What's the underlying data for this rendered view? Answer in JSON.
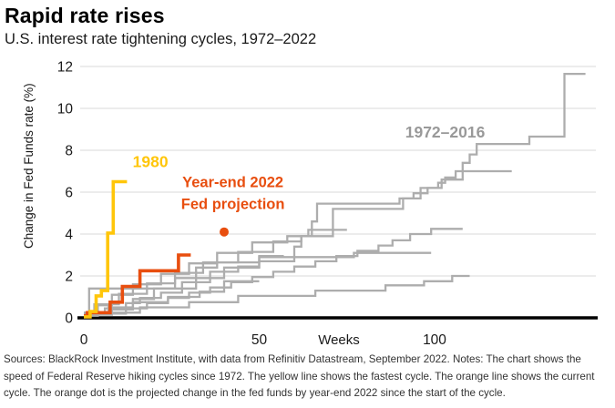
{
  "header": {
    "title": "Rapid rate rises",
    "subtitle": "U.S. interest rate tightening cycles, 1972–2022"
  },
  "footer": {
    "text": "Sources: BlackRock Investment Institute, with data from Refinitiv Datastream, September 2022. Notes: The chart shows the speed of Federal Reserve hiking cycles since 1972. The yellow line shows the fastest cycle. The orange line shows the current cycle. The orange dot is the projected change in the fed funds by year-end 2022 since the start of the cycle."
  },
  "chart_data": {
    "type": "line",
    "title": "Rapid rate rises",
    "subtitle": "U.S. interest rate tightening cycles, 1972-2022",
    "xlabel": "Weeks",
    "ylabel": "Change in Fed Funds rate (%)",
    "xlim": [
      0,
      145
    ],
    "ylim": [
      0,
      12
    ],
    "x_ticks": [
      0,
      50,
      100
    ],
    "y_ticks": [
      0,
      2,
      4,
      6,
      8,
      10,
      12
    ],
    "grid": "horizontal",
    "legend_position": "annotations-inline",
    "colors": {
      "yellow": "#FFC60A",
      "orange": "#E84E0F",
      "gray": "#ADADAD",
      "gray_label": "#999999",
      "grid": "#DADADA",
      "axis": "#000000",
      "tick_text": "#1a1a1a"
    },
    "series": [
      {
        "name": "cycle-1972-2016-a",
        "color": "gray",
        "width": 2.3,
        "points": [
          [
            0,
            0.1
          ],
          [
            4,
            0.1
          ],
          [
            4,
            0.6
          ],
          [
            8,
            0.6
          ],
          [
            8,
            1.1
          ],
          [
            14,
            1.1
          ],
          [
            14,
            1.6
          ],
          [
            22,
            1.6
          ],
          [
            22,
            2.1
          ],
          [
            30,
            2.1
          ],
          [
            30,
            2.6
          ],
          [
            38,
            2.6
          ],
          [
            38,
            3.1
          ],
          [
            48,
            3.1
          ],
          [
            48,
            3.6
          ],
          [
            58,
            3.6
          ],
          [
            58,
            3.9
          ],
          [
            65,
            3.9
          ],
          [
            65,
            4.6
          ],
          [
            66.5,
            4.6
          ],
          [
            66.5,
            5.45
          ],
          [
            90,
            5.45
          ],
          [
            90,
            5.7
          ],
          [
            94,
            5.7
          ],
          [
            94,
            5.95
          ],
          [
            98,
            5.95
          ],
          [
            98,
            6.2
          ],
          [
            101,
            6.2
          ],
          [
            101,
            6.45
          ],
          [
            103,
            6.45
          ],
          [
            103,
            6.7
          ],
          [
            106,
            6.7
          ],
          [
            106,
            7.0
          ],
          [
            108,
            7.0
          ],
          [
            108,
            7.4
          ],
          [
            110,
            7.4
          ],
          [
            110,
            7.8
          ],
          [
            112,
            7.8
          ],
          [
            112,
            8.3
          ],
          [
            127,
            8.3
          ],
          [
            127,
            8.65
          ],
          [
            137,
            8.65
          ],
          [
            137,
            11.65
          ],
          [
            143,
            11.65
          ]
        ]
      },
      {
        "name": "cycle-1972-2016-b",
        "color": "gray",
        "width": 2.3,
        "points": [
          [
            0,
            0.15
          ],
          [
            3,
            0.15
          ],
          [
            3,
            0.65
          ],
          [
            10,
            0.65
          ],
          [
            10,
            1.15
          ],
          [
            18,
            1.15
          ],
          [
            18,
            1.65
          ],
          [
            26,
            1.65
          ],
          [
            26,
            2.15
          ],
          [
            34,
            2.15
          ],
          [
            34,
            2.65
          ],
          [
            44,
            2.65
          ],
          [
            44,
            3.15
          ],
          [
            54,
            3.15
          ],
          [
            54,
            3.65
          ],
          [
            62,
            3.65
          ],
          [
            62,
            3.9
          ],
          [
            71,
            3.9
          ],
          [
            71,
            5.2
          ],
          [
            91,
            5.2
          ],
          [
            91,
            5.7
          ],
          [
            96,
            5.7
          ],
          [
            96,
            6.2
          ],
          [
            102,
            6.2
          ],
          [
            102,
            6.6
          ],
          [
            108,
            6.6
          ],
          [
            108,
            7.0
          ],
          [
            122,
            7.0
          ]
        ]
      },
      {
        "name": "cycle-1972-2016-c",
        "color": "gray",
        "width": 2.3,
        "points": [
          [
            0,
            0.2
          ],
          [
            12,
            0.2
          ],
          [
            12,
            0.45
          ],
          [
            18,
            0.45
          ],
          [
            18,
            0.7
          ],
          [
            24,
            0.7
          ],
          [
            24,
            0.95
          ],
          [
            30,
            0.95
          ],
          [
            30,
            1.2
          ],
          [
            36,
            1.2
          ],
          [
            36,
            1.45
          ],
          [
            42,
            1.45
          ],
          [
            42,
            1.7
          ],
          [
            48,
            1.7
          ],
          [
            48,
            1.95
          ],
          [
            54,
            1.95
          ],
          [
            54,
            2.2
          ],
          [
            60,
            2.2
          ],
          [
            60,
            2.45
          ],
          [
            66,
            2.45
          ],
          [
            66,
            2.7
          ],
          [
            72,
            2.7
          ],
          [
            72,
            2.95
          ],
          [
            78,
            2.95
          ],
          [
            78,
            3.2
          ],
          [
            84,
            3.2
          ],
          [
            84,
            3.45
          ],
          [
            88,
            3.45
          ],
          [
            88,
            3.7
          ],
          [
            93,
            3.7
          ],
          [
            93,
            4.0
          ],
          [
            99,
            4.0
          ],
          [
            99,
            4.25
          ],
          [
            108,
            4.25
          ]
        ]
      },
      {
        "name": "cycle-1972-2016-d",
        "color": "gray",
        "width": 2.3,
        "points": [
          [
            0,
            0.25
          ],
          [
            16,
            0.25
          ],
          [
            16,
            0.5
          ],
          [
            30,
            0.5
          ],
          [
            30,
            0.75
          ],
          [
            44,
            0.75
          ],
          [
            44,
            1.05
          ],
          [
            66,
            1.05
          ],
          [
            66,
            1.3
          ],
          [
            86,
            1.3
          ],
          [
            86,
            1.55
          ],
          [
            97,
            1.55
          ],
          [
            97,
            1.75
          ],
          [
            105,
            1.75
          ],
          [
            105,
            2.0
          ],
          [
            110,
            2.0
          ]
        ]
      },
      {
        "name": "cycle-1972-2016-e",
        "color": "gray",
        "width": 2.3,
        "points": [
          [
            0,
            0.1
          ],
          [
            1.5,
            0.1
          ],
          [
            1.5,
            1.4
          ],
          [
            32,
            1.4
          ],
          [
            32,
            1.9
          ],
          [
            40,
            1.9
          ],
          [
            40,
            2.4
          ],
          [
            50,
            2.4
          ],
          [
            50,
            2.7
          ],
          [
            60,
            2.7
          ],
          [
            60,
            3.4
          ],
          [
            62,
            3.4
          ],
          [
            62,
            3.9
          ],
          [
            64,
            3.9
          ],
          [
            64,
            4.2
          ],
          [
            75,
            4.2
          ]
        ]
      },
      {
        "name": "cycle-1972-2016-f",
        "color": "gray",
        "width": 2.3,
        "points": [
          [
            0,
            0.2
          ],
          [
            6,
            0.2
          ],
          [
            6,
            0.45
          ],
          [
            12,
            0.45
          ],
          [
            12,
            0.7
          ],
          [
            16,
            0.7
          ],
          [
            16,
            0.95
          ],
          [
            22,
            0.95
          ],
          [
            22,
            1.2
          ],
          [
            28,
            1.2
          ],
          [
            28,
            1.7
          ],
          [
            36,
            1.7
          ],
          [
            36,
            2.2
          ],
          [
            44,
            2.2
          ],
          [
            44,
            2.45
          ],
          [
            50,
            2.45
          ],
          [
            50,
            2.95
          ],
          [
            57,
            2.95
          ]
        ]
      },
      {
        "name": "cycle-1972-2016-g",
        "color": "gray",
        "width": 2.3,
        "points": [
          [
            0,
            0.15
          ],
          [
            8,
            0.15
          ],
          [
            8,
            0.4
          ],
          [
            14,
            0.4
          ],
          [
            14,
            0.9
          ],
          [
            20,
            0.9
          ],
          [
            20,
            1.4
          ],
          [
            26,
            1.4
          ],
          [
            26,
            1.9
          ],
          [
            32,
            1.9
          ],
          [
            32,
            2.4
          ],
          [
            38,
            2.4
          ],
          [
            38,
            2.65
          ],
          [
            50,
            2.65
          ],
          [
            50,
            2.9
          ],
          [
            77,
            2.9
          ],
          [
            77,
            3.1
          ],
          [
            99,
            3.1
          ]
        ]
      },
      {
        "name": "cycle-1972-2016-h",
        "color": "gray",
        "width": 2.3,
        "points": [
          [
            0,
            0.25
          ],
          [
            7,
            0.25
          ],
          [
            7,
            0.5
          ],
          [
            14,
            0.5
          ],
          [
            14,
            0.75
          ],
          [
            24,
            0.75
          ],
          [
            24,
            1.0
          ],
          [
            33,
            1.0
          ],
          [
            33,
            1.25
          ],
          [
            40,
            1.25
          ],
          [
            40,
            1.75
          ],
          [
            50,
            1.75
          ]
        ]
      },
      {
        "name": "cycle-2022-current",
        "color": "orange",
        "width": 3.6,
        "points": [
          [
            0,
            0.1
          ],
          [
            1,
            0.1
          ],
          [
            1,
            0.25
          ],
          [
            7.5,
            0.25
          ],
          [
            7.5,
            0.75
          ],
          [
            11,
            0.75
          ],
          [
            11,
            1.5
          ],
          [
            16,
            1.5
          ],
          [
            16,
            2.25
          ],
          [
            27,
            2.25
          ],
          [
            27,
            3.0
          ],
          [
            30.5,
            3.0
          ]
        ]
      },
      {
        "name": "cycle-1980-fastest",
        "color": "yellow",
        "width": 3.6,
        "points": [
          [
            0,
            0.05
          ],
          [
            1.8,
            0.05
          ],
          [
            1.8,
            0.3
          ],
          [
            3.5,
            0.3
          ],
          [
            3.5,
            1.05
          ],
          [
            5,
            1.05
          ],
          [
            5,
            1.3
          ],
          [
            6.8,
            1.3
          ],
          [
            6.8,
            4.05
          ],
          [
            8.4,
            4.05
          ],
          [
            8.4,
            6.5
          ],
          [
            12.3,
            6.5
          ]
        ]
      }
    ],
    "projection_dot": {
      "x": 40,
      "y": 4.1,
      "color": "orange",
      "label": "Year-end 2022 Fed projection"
    },
    "annotations": [
      {
        "text": "1980",
        "color": "yellow",
        "x": 19,
        "y": 7.2,
        "size": 17.5,
        "name": "label-1980"
      },
      {
        "text": "Year-end 2022",
        "color": "orange",
        "x": 42.5,
        "y": 6.25,
        "size": 16.5,
        "name": "label-projection-line1"
      },
      {
        "text": "Fed projection",
        "color": "orange",
        "x": 42.5,
        "y": 5.2,
        "size": 16.5,
        "name": "label-projection-line2"
      },
      {
        "text": "1972–2016",
        "color": "gray_label",
        "x": 103,
        "y": 8.6,
        "size": 17.5,
        "name": "label-1972-2016"
      }
    ]
  }
}
